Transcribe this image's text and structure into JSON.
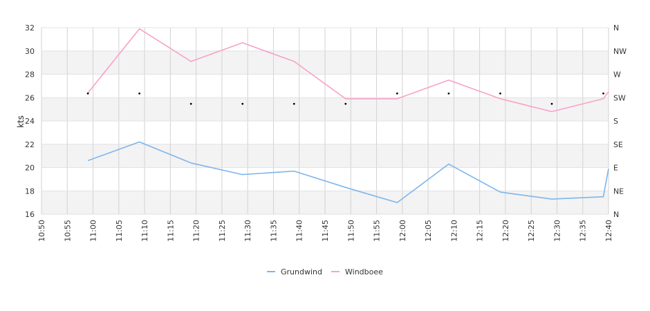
{
  "chart_data": {
    "type": "line",
    "ylabel": "kts",
    "ylim": [
      16,
      32
    ],
    "y_ticks": [
      "16",
      "18",
      "20",
      "22",
      "24",
      "26",
      "28",
      "30",
      "32"
    ],
    "x_ticks": [
      "10:50",
      "10:55",
      "11:00",
      "11:05",
      "11:10",
      "11:15",
      "11:20",
      "11:25",
      "11:30",
      "11:35",
      "11:40",
      "11:45",
      "11:50",
      "11:55",
      "12:00",
      "12:05",
      "12:10",
      "12:15",
      "12:20",
      "12:25",
      "12:30",
      "12:35",
      "12:40"
    ],
    "direction_ticks": [
      "N",
      "NE",
      "E",
      "SE",
      "S",
      "SW",
      "W",
      "NW",
      "N"
    ],
    "grid": true,
    "legend_position": "bottom-center",
    "series": [
      {
        "name": "Grundwind",
        "color": "#7cb5ec",
        "points": [
          [
            "10:59",
            20.6
          ],
          [
            "11:09",
            22.2
          ],
          [
            "11:19",
            20.4
          ],
          [
            "11:29",
            19.4
          ],
          [
            "11:39",
            19.7
          ],
          [
            "11:49",
            18.3
          ],
          [
            "11:59",
            17.0
          ],
          [
            "12:09",
            20.3
          ],
          [
            "12:19",
            17.9
          ],
          [
            "12:29",
            17.3
          ],
          [
            "12:39",
            17.5
          ],
          [
            "12:40",
            19.9
          ]
        ]
      },
      {
        "name": "Windboee",
        "color": "#f7a1c8",
        "points": [
          [
            "10:59",
            26.4
          ],
          [
            "11:09",
            31.9
          ],
          [
            "11:19",
            29.1
          ],
          [
            "11:29",
            30.7
          ],
          [
            "11:39",
            29.1
          ],
          [
            "11:49",
            25.9
          ],
          [
            "11:59",
            25.9
          ],
          [
            "12:09",
            27.5
          ],
          [
            "12:19",
            25.9
          ],
          [
            "12:29",
            24.8
          ],
          [
            "12:39",
            25.9
          ],
          [
            "12:40",
            26.5
          ]
        ]
      },
      {
        "type": "scatter",
        "color": "#000000",
        "points": [
          [
            "10:59",
            "SW"
          ],
          [
            "11:09",
            "SW"
          ],
          [
            "11:19",
            "SW"
          ],
          [
            "11:29",
            "SW"
          ],
          [
            "11:39",
            "SW"
          ],
          [
            "11:49",
            "SW"
          ],
          [
            "11:59",
            "SW"
          ],
          [
            "12:09",
            "SW"
          ],
          [
            "12:19",
            "SW"
          ],
          [
            "12:29",
            "SW"
          ],
          [
            "12:39",
            "SW"
          ]
        ],
        "direction_degrees": [
          233,
          233,
          213,
          213,
          213,
          213,
          233,
          233,
          233,
          213,
          233
        ]
      }
    ]
  }
}
